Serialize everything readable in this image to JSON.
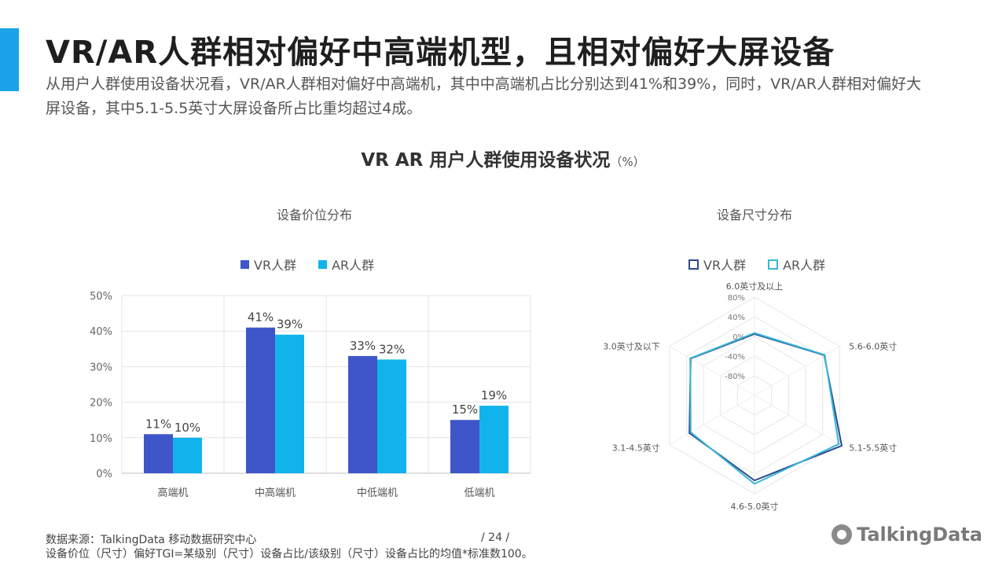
{
  "header": {
    "title": "VR/AR人群相对偏好中高端机型，且相对偏好大屏设备",
    "subtitle": "从用户人群使用设备状况看，VR/AR人群相对偏好中高端机，其中中高端机占比分别达到41%和39%，同时，VR/AR人群相对偏好大屏设备，其中5.1-5.5英寸大屏设备所占比重均超过4成。"
  },
  "main_chart": {
    "title": "VR  AR  用户人群使用设备状况",
    "unit": "（%）"
  },
  "colors": {
    "accent": "#1aa3e8",
    "vr": "#3f56c9",
    "ar": "#10b4ea",
    "radar_vr": "#2e4a8c",
    "radar_ar": "#36b7d9"
  },
  "chart_data": [
    {
      "type": "bar",
      "title": "设备价位分布",
      "categories": [
        "高端机",
        "中高端机",
        "中低端机",
        "低端机"
      ],
      "series": [
        {
          "name": "VR人群",
          "values": [
            11,
            41,
            33,
            15
          ]
        },
        {
          "name": "AR人群",
          "values": [
            10,
            39,
            32,
            19
          ]
        }
      ],
      "data_labels": [
        [
          "11%",
          "41%",
          "33%",
          "15%"
        ],
        [
          "10%",
          "39%",
          "32%",
          "19%"
        ]
      ],
      "ylim": [
        0,
        50
      ],
      "yticks": [
        "0%",
        "10%",
        "20%",
        "30%",
        "40%",
        "50%"
      ],
      "grid": true,
      "legend": "top"
    },
    {
      "type": "radar",
      "title": "设备尺寸分布",
      "categories": [
        "6.0英寸及以上",
        "5.6-6.0英寸",
        "5.1-5.5英寸",
        "4.6-5.0英寸",
        "3.1-4.5英寸",
        "3.0英寸及以下"
      ],
      "series": [
        {
          "name": "VR人群",
          "values": [
            5,
            44,
            85,
            53,
            33,
            30
          ]
        },
        {
          "name": "AR人群",
          "values": [
            7,
            45,
            78,
            60,
            30,
            31
          ]
        }
      ],
      "rlim": [
        -120,
        80
      ],
      "rticks": [
        "80%",
        "40%",
        "0%",
        "-40%",
        "-80%"
      ],
      "legend": "top"
    }
  ],
  "footer": {
    "source": "数据来源：TalkingData 移动数据研究中心",
    "page": "/  24  /",
    "note": "设备价位（尺寸）偏好TGI=某级别（尺寸）设备占比/该级别（尺寸）设备占比的均值*标准数100。",
    "logo": "TalkingData"
  }
}
